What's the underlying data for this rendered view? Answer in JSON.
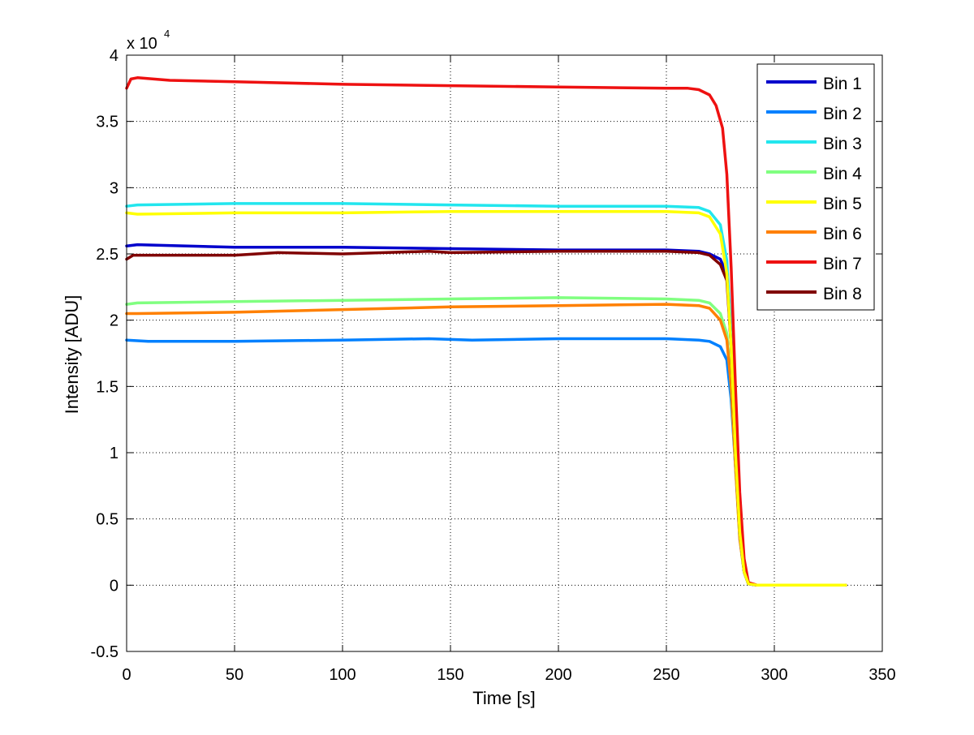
{
  "chart_data": {
    "type": "line",
    "title": "",
    "xlabel": "Time [s]",
    "ylabel": "Intensity [ADU]",
    "y_exponent_label": "x 10",
    "y_exponent": "4",
    "xlim": [
      0,
      350
    ],
    "ylim": [
      -0.5,
      4
    ],
    "x_ticks": [
      "0",
      "50",
      "100",
      "150",
      "200",
      "250",
      "300",
      "350"
    ],
    "y_ticks": [
      "-0.5",
      "0",
      "0.5",
      "1",
      "1.5",
      "2",
      "2.5",
      "3",
      "3.5",
      "4"
    ],
    "grid": true,
    "legend_position": "top-right",
    "series": [
      {
        "name": "Bin 1",
        "color": "#0000cc",
        "x": [
          0,
          5,
          50,
          100,
          150,
          200,
          250,
          265,
          270,
          275,
          278,
          280,
          282,
          284,
          286,
          288,
          292,
          333
        ],
        "y": [
          2.56,
          2.57,
          2.55,
          2.55,
          2.54,
          2.53,
          2.53,
          2.52,
          2.5,
          2.46,
          2.35,
          1.8,
          1.0,
          0.4,
          0.1,
          0.01,
          0,
          0
        ]
      },
      {
        "name": "Bin 2",
        "color": "#0080ff",
        "x": [
          0,
          10,
          50,
          100,
          140,
          160,
          200,
          250,
          265,
          270,
          275,
          278,
          280,
          282,
          284,
          286,
          288,
          292,
          333
        ],
        "y": [
          1.85,
          1.84,
          1.84,
          1.85,
          1.86,
          1.85,
          1.86,
          1.86,
          1.85,
          1.84,
          1.8,
          1.7,
          1.4,
          0.9,
          0.4,
          0.1,
          0.01,
          0,
          0
        ]
      },
      {
        "name": "Bin 3",
        "color": "#22e6ee",
        "x": [
          0,
          5,
          50,
          100,
          150,
          200,
          250,
          265,
          270,
          275,
          278,
          280,
          282,
          284,
          286,
          288,
          292,
          333
        ],
        "y": [
          2.86,
          2.87,
          2.88,
          2.88,
          2.87,
          2.86,
          2.86,
          2.85,
          2.82,
          2.72,
          2.45,
          1.9,
          1.1,
          0.4,
          0.1,
          0.01,
          0,
          0
        ]
      },
      {
        "name": "Bin 4",
        "color": "#80ff80",
        "x": [
          0,
          5,
          50,
          100,
          150,
          200,
          250,
          265,
          270,
          275,
          278,
          280,
          282,
          284,
          286,
          288,
          292,
          333
        ],
        "y": [
          2.12,
          2.13,
          2.14,
          2.15,
          2.16,
          2.17,
          2.16,
          2.15,
          2.13,
          2.05,
          1.9,
          1.5,
          0.9,
          0.35,
          0.1,
          0.01,
          0,
          0
        ]
      },
      {
        "name": "Bin 5",
        "color": "#ffff00",
        "x": [
          0,
          5,
          50,
          100,
          150,
          200,
          250,
          265,
          270,
          275,
          278,
          280,
          282,
          284,
          286,
          288,
          292,
          333
        ],
        "y": [
          2.81,
          2.8,
          2.81,
          2.81,
          2.82,
          2.82,
          2.82,
          2.81,
          2.78,
          2.65,
          2.35,
          1.8,
          1.0,
          0.4,
          0.1,
          0.01,
          0,
          0
        ]
      },
      {
        "name": "Bin 6",
        "color": "#ff8000",
        "x": [
          0,
          5,
          50,
          100,
          150,
          200,
          250,
          265,
          270,
          275,
          278,
          280,
          282,
          284,
          286,
          288,
          292,
          333
        ],
        "y": [
          2.05,
          2.05,
          2.06,
          2.08,
          2.1,
          2.11,
          2.12,
          2.11,
          2.09,
          2.0,
          1.85,
          1.5,
          0.9,
          0.35,
          0.1,
          0.01,
          0,
          0
        ]
      },
      {
        "name": "Bin 7",
        "color": "#ee1111",
        "x": [
          0,
          2,
          5,
          20,
          50,
          100,
          150,
          200,
          250,
          260,
          265,
          270,
          273,
          276,
          278,
          280,
          282,
          284,
          286,
          288,
          292,
          333
        ],
        "y": [
          3.75,
          3.82,
          3.83,
          3.81,
          3.8,
          3.78,
          3.77,
          3.76,
          3.75,
          3.75,
          3.74,
          3.7,
          3.62,
          3.45,
          3.1,
          2.4,
          1.5,
          0.7,
          0.2,
          0.02,
          0,
          0
        ]
      },
      {
        "name": "Bin 8",
        "color": "#800000",
        "x": [
          0,
          3,
          10,
          50,
          70,
          100,
          140,
          150,
          200,
          250,
          265,
          270,
          275,
          278,
          280,
          282,
          284,
          286,
          288,
          292,
          333
        ],
        "y": [
          2.46,
          2.49,
          2.49,
          2.49,
          2.51,
          2.5,
          2.52,
          2.51,
          2.52,
          2.52,
          2.51,
          2.49,
          2.42,
          2.3,
          1.8,
          1.0,
          0.4,
          0.1,
          0.01,
          0,
          0
        ]
      }
    ]
  }
}
